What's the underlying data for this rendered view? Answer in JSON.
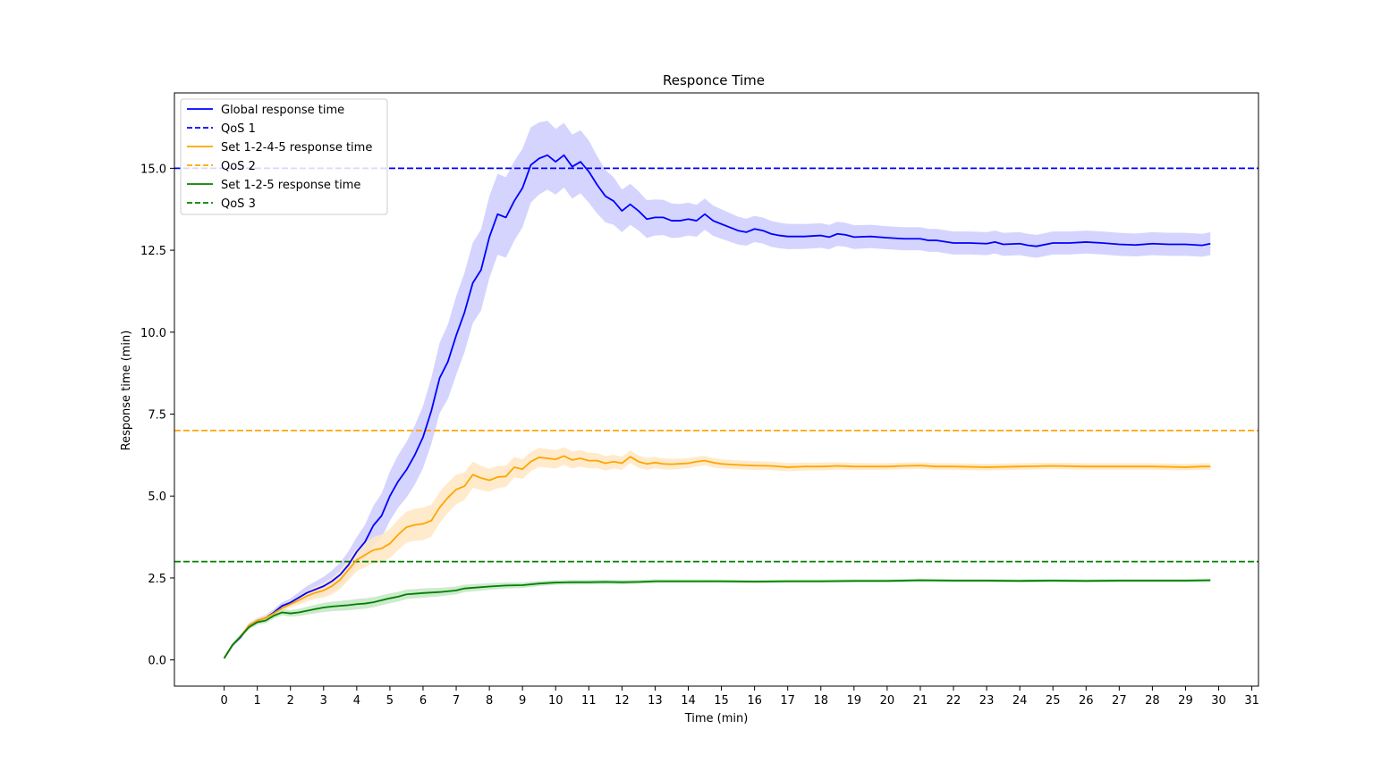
{
  "chart_data": {
    "type": "line",
    "title": "Responce Time",
    "xlabel": "Time (min)",
    "ylabel": "Response time (min)",
    "xlim": [
      -1.5,
      31.2
    ],
    "ylim": [
      -0.8,
      17.3
    ],
    "xticks": [
      0,
      1,
      2,
      3,
      4,
      5,
      6,
      7,
      8,
      9,
      10,
      11,
      12,
      13,
      14,
      15,
      16,
      17,
      18,
      19,
      20,
      21,
      22,
      23,
      24,
      25,
      26,
      27,
      28,
      29,
      30,
      31
    ],
    "yticks": [
      0.0,
      2.5,
      5.0,
      7.5,
      10.0,
      12.5,
      15.0
    ],
    "ytick_labels": [
      "0.0",
      "2.5",
      "5.0",
      "7.5",
      "10.0",
      "12.5",
      "15.0"
    ],
    "legend_position": "top-left",
    "series": [
      {
        "name": "Global response time",
        "color": "#0000ff",
        "band_color": "#ccccff",
        "points": [
          [
            0,
            0.05
          ],
          [
            0.25,
            0.45
          ],
          [
            0.5,
            0.7
          ],
          [
            0.75,
            1.05
          ],
          [
            1,
            1.2
          ],
          [
            1.25,
            1.28
          ],
          [
            1.5,
            1.45
          ],
          [
            1.75,
            1.65
          ],
          [
            2,
            1.75
          ],
          [
            2.25,
            1.9
          ],
          [
            2.5,
            2.05
          ],
          [
            2.75,
            2.15
          ],
          [
            3,
            2.25
          ],
          [
            3.25,
            2.4
          ],
          [
            3.5,
            2.6
          ],
          [
            3.75,
            2.9
          ],
          [
            4,
            3.3
          ],
          [
            4.25,
            3.6
          ],
          [
            4.5,
            4.1
          ],
          [
            4.75,
            4.4
          ],
          [
            5,
            5.0
          ],
          [
            5.25,
            5.45
          ],
          [
            5.5,
            5.8
          ],
          [
            5.75,
            6.25
          ],
          [
            6,
            6.8
          ],
          [
            6.25,
            7.6
          ],
          [
            6.5,
            8.6
          ],
          [
            6.75,
            9.1
          ],
          [
            7,
            9.9
          ],
          [
            7.25,
            10.6
          ],
          [
            7.5,
            11.5
          ],
          [
            7.75,
            11.9
          ],
          [
            8,
            12.9
          ],
          [
            8.25,
            13.6
          ],
          [
            8.5,
            13.5
          ],
          [
            8.75,
            14.0
          ],
          [
            9,
            14.4
          ],
          [
            9.25,
            15.1
          ],
          [
            9.5,
            15.3
          ],
          [
            9.75,
            15.4
          ],
          [
            10,
            15.2
          ],
          [
            10.25,
            15.4
          ],
          [
            10.5,
            15.05
          ],
          [
            10.75,
            15.2
          ],
          [
            11,
            14.9
          ],
          [
            11.25,
            14.5
          ],
          [
            11.5,
            14.15
          ],
          [
            11.75,
            14.0
          ],
          [
            12,
            13.7
          ],
          [
            12.25,
            13.9
          ],
          [
            12.5,
            13.7
          ],
          [
            12.75,
            13.45
          ],
          [
            13,
            13.5
          ],
          [
            13.25,
            13.5
          ],
          [
            13.5,
            13.4
          ],
          [
            13.75,
            13.4
          ],
          [
            14,
            13.45
          ],
          [
            14.25,
            13.4
          ],
          [
            14.5,
            13.6
          ],
          [
            14.75,
            13.4
          ],
          [
            15,
            13.3
          ],
          [
            15.25,
            13.2
          ],
          [
            15.5,
            13.1
          ],
          [
            15.75,
            13.05
          ],
          [
            16,
            13.15
          ],
          [
            16.25,
            13.1
          ],
          [
            16.5,
            13.0
          ],
          [
            16.75,
            12.95
          ],
          [
            17,
            12.92
          ],
          [
            17.5,
            12.92
          ],
          [
            18,
            12.95
          ],
          [
            18.25,
            12.9
          ],
          [
            18.5,
            13.0
          ],
          [
            18.75,
            12.97
          ],
          [
            19,
            12.9
          ],
          [
            19.5,
            12.92
          ],
          [
            20,
            12.88
          ],
          [
            20.5,
            12.85
          ],
          [
            21,
            12.85
          ],
          [
            21.25,
            12.8
          ],
          [
            21.5,
            12.8
          ],
          [
            22,
            12.72
          ],
          [
            22.5,
            12.72
          ],
          [
            23,
            12.7
          ],
          [
            23.25,
            12.75
          ],
          [
            23.5,
            12.68
          ],
          [
            24,
            12.7
          ],
          [
            24.25,
            12.65
          ],
          [
            24.5,
            12.62
          ],
          [
            25,
            12.72
          ],
          [
            25.5,
            12.72
          ],
          [
            26,
            12.75
          ],
          [
            26.5,
            12.72
          ],
          [
            27,
            12.68
          ],
          [
            27.5,
            12.66
          ],
          [
            28,
            12.7
          ],
          [
            28.5,
            12.68
          ],
          [
            29,
            12.68
          ],
          [
            29.5,
            12.65
          ],
          [
            29.75,
            12.7
          ]
        ],
        "band_width": [
          [
            0,
            0.05
          ],
          [
            2,
            0.12
          ],
          [
            4,
            0.45
          ],
          [
            5,
            0.75
          ],
          [
            6,
            0.95
          ],
          [
            7,
            1.2
          ],
          [
            8,
            1.25
          ],
          [
            9,
            1.2
          ],
          [
            10,
            1.0
          ],
          [
            11,
            0.95
          ],
          [
            12,
            0.65
          ],
          [
            13,
            0.55
          ],
          [
            14,
            0.5
          ],
          [
            16,
            0.4
          ],
          [
            20,
            0.35
          ],
          [
            29.75,
            0.35
          ]
        ]
      },
      {
        "name": "Set 1-2-4-5 response time",
        "color": "#ffa500",
        "band_color": "#ffe7c2",
        "points": [
          [
            0,
            0.05
          ],
          [
            0.25,
            0.45
          ],
          [
            0.5,
            0.72
          ],
          [
            0.75,
            1.05
          ],
          [
            1,
            1.2
          ],
          [
            1.25,
            1.28
          ],
          [
            1.5,
            1.42
          ],
          [
            1.75,
            1.58
          ],
          [
            2,
            1.7
          ],
          [
            2.25,
            1.82
          ],
          [
            2.5,
            1.95
          ],
          [
            2.75,
            2.05
          ],
          [
            3,
            2.12
          ],
          [
            3.25,
            2.25
          ],
          [
            3.5,
            2.45
          ],
          [
            3.75,
            2.75
          ],
          [
            4,
            3.05
          ],
          [
            4.25,
            3.2
          ],
          [
            4.5,
            3.35
          ],
          [
            4.75,
            3.4
          ],
          [
            5,
            3.55
          ],
          [
            5.25,
            3.82
          ],
          [
            5.5,
            4.05
          ],
          [
            5.75,
            4.12
          ],
          [
            6,
            4.15
          ],
          [
            6.25,
            4.25
          ],
          [
            6.5,
            4.65
          ],
          [
            6.75,
            4.95
          ],
          [
            7,
            5.2
          ],
          [
            7.25,
            5.3
          ],
          [
            7.5,
            5.65
          ],
          [
            7.75,
            5.55
          ],
          [
            8,
            5.48
          ],
          [
            8.25,
            5.58
          ],
          [
            8.5,
            5.6
          ],
          [
            8.75,
            5.88
          ],
          [
            9,
            5.82
          ],
          [
            9.25,
            6.05
          ],
          [
            9.5,
            6.18
          ],
          [
            9.75,
            6.15
          ],
          [
            10,
            6.12
          ],
          [
            10.25,
            6.22
          ],
          [
            10.5,
            6.1
          ],
          [
            10.75,
            6.15
          ],
          [
            11,
            6.08
          ],
          [
            11.25,
            6.08
          ],
          [
            11.5,
            6.0
          ],
          [
            11.75,
            6.05
          ],
          [
            12,
            6.0
          ],
          [
            12.25,
            6.2
          ],
          [
            12.5,
            6.05
          ],
          [
            12.75,
            5.98
          ],
          [
            13,
            6.02
          ],
          [
            13.25,
            5.98
          ],
          [
            13.5,
            5.97
          ],
          [
            14,
            6.0
          ],
          [
            14.25,
            6.05
          ],
          [
            14.5,
            6.08
          ],
          [
            14.75,
            6.02
          ],
          [
            15,
            5.98
          ],
          [
            15.5,
            5.95
          ],
          [
            16,
            5.93
          ],
          [
            16.5,
            5.92
          ],
          [
            17,
            5.88
          ],
          [
            17.5,
            5.9
          ],
          [
            18,
            5.9
          ],
          [
            18.5,
            5.92
          ],
          [
            19,
            5.9
          ],
          [
            20,
            5.9
          ],
          [
            20.5,
            5.92
          ],
          [
            21,
            5.93
          ],
          [
            21.5,
            5.9
          ],
          [
            22,
            5.9
          ],
          [
            23,
            5.88
          ],
          [
            24,
            5.9
          ],
          [
            25,
            5.92
          ],
          [
            26,
            5.9
          ],
          [
            27,
            5.9
          ],
          [
            28,
            5.9
          ],
          [
            29,
            5.88
          ],
          [
            29.5,
            5.9
          ],
          [
            29.75,
            5.9
          ]
        ],
        "band_width": [
          [
            0,
            0.05
          ],
          [
            2,
            0.1
          ],
          [
            4,
            0.35
          ],
          [
            5,
            0.45
          ],
          [
            6,
            0.5
          ],
          [
            7,
            0.45
          ],
          [
            8,
            0.35
          ],
          [
            9,
            0.3
          ],
          [
            10,
            0.28
          ],
          [
            12,
            0.2
          ],
          [
            14,
            0.15
          ],
          [
            20,
            0.1
          ],
          [
            29.75,
            0.1
          ]
        ]
      },
      {
        "name": "Set 1-2-5 response time",
        "color": "#008000",
        "band_color": "#c3e6c3",
        "points": [
          [
            0,
            0.05
          ],
          [
            0.25,
            0.45
          ],
          [
            0.5,
            0.72
          ],
          [
            0.75,
            1.0
          ],
          [
            1,
            1.15
          ],
          [
            1.25,
            1.2
          ],
          [
            1.5,
            1.35
          ],
          [
            1.75,
            1.45
          ],
          [
            2,
            1.42
          ],
          [
            2.25,
            1.45
          ],
          [
            2.5,
            1.5
          ],
          [
            2.75,
            1.55
          ],
          [
            3,
            1.6
          ],
          [
            3.25,
            1.63
          ],
          [
            3.5,
            1.65
          ],
          [
            3.75,
            1.67
          ],
          [
            4,
            1.7
          ],
          [
            4.25,
            1.72
          ],
          [
            4.5,
            1.76
          ],
          [
            4.75,
            1.82
          ],
          [
            5,
            1.88
          ],
          [
            5.25,
            1.93
          ],
          [
            5.5,
            2.0
          ],
          [
            5.75,
            2.02
          ],
          [
            6,
            2.04
          ],
          [
            6.5,
            2.07
          ],
          [
            7,
            2.12
          ],
          [
            7.25,
            2.18
          ],
          [
            7.5,
            2.2
          ],
          [
            8,
            2.24
          ],
          [
            8.5,
            2.27
          ],
          [
            9,
            2.28
          ],
          [
            9.5,
            2.33
          ],
          [
            10,
            2.36
          ],
          [
            10.5,
            2.37
          ],
          [
            11,
            2.37
          ],
          [
            11.5,
            2.38
          ],
          [
            12,
            2.37
          ],
          [
            12.5,
            2.38
          ],
          [
            13,
            2.4
          ],
          [
            14,
            2.4
          ],
          [
            15,
            2.4
          ],
          [
            16,
            2.39
          ],
          [
            17,
            2.4
          ],
          [
            18,
            2.4
          ],
          [
            19,
            2.41
          ],
          [
            20,
            2.41
          ],
          [
            21,
            2.43
          ],
          [
            22,
            2.42
          ],
          [
            23,
            2.42
          ],
          [
            24,
            2.41
          ],
          [
            25,
            2.42
          ],
          [
            26,
            2.41
          ],
          [
            27,
            2.42
          ],
          [
            28,
            2.42
          ],
          [
            29,
            2.42
          ],
          [
            29.75,
            2.43
          ]
        ],
        "band_width": [
          [
            0,
            0.05
          ],
          [
            2,
            0.1
          ],
          [
            3,
            0.14
          ],
          [
            4,
            0.16
          ],
          [
            6,
            0.14
          ],
          [
            8,
            0.1
          ],
          [
            10,
            0.07
          ],
          [
            15,
            0.05
          ],
          [
            29.75,
            0.05
          ]
        ]
      }
    ],
    "reference_lines": [
      {
        "name": "QoS 1",
        "y": 15.0,
        "color": "#0000ff",
        "style": "dashed"
      },
      {
        "name": "QoS 2",
        "y": 7.0,
        "color": "#ffa500",
        "style": "dashed"
      },
      {
        "name": "QoS 3",
        "y": 3.0,
        "color": "#008000",
        "style": "dashed"
      }
    ],
    "legend": [
      {
        "label": "Global response time",
        "color": "#0000ff",
        "style": "solid"
      },
      {
        "label": "QoS 1",
        "color": "#0000ff",
        "style": "dashed"
      },
      {
        "label": "Set 1-2-4-5 response time",
        "color": "#ffa500",
        "style": "solid"
      },
      {
        "label": "QoS 2",
        "color": "#ffa500",
        "style": "dashed"
      },
      {
        "label": "Set 1-2-5 response time",
        "color": "#008000",
        "style": "solid"
      },
      {
        "label": "QoS 3",
        "color": "#008000",
        "style": "dashed"
      }
    ]
  }
}
